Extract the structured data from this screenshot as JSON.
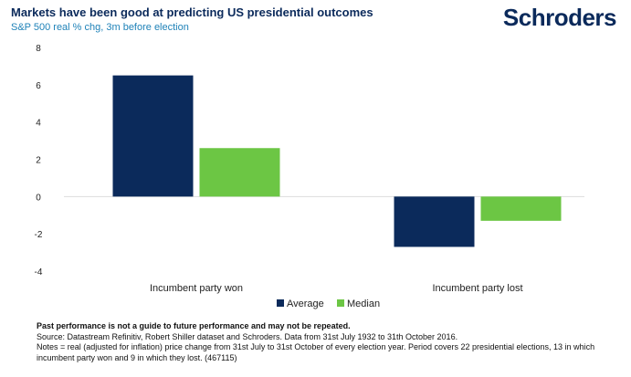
{
  "header": {
    "title": "Markets have been good at predicting US presidential outcomes",
    "subtitle": "S&P 500 real % chg, 3m before election",
    "logo": "Schroders"
  },
  "colors": {
    "average": "#0b2a5b",
    "median": "#6cc644",
    "title": "#0b2a5b",
    "subtitle": "#1f82b8"
  },
  "chart_data": {
    "type": "bar",
    "categories": [
      "Incumbent party won",
      "Incumbent party lost"
    ],
    "series": [
      {
        "name": "Average",
        "values": [
          6.5,
          -2.7
        ]
      },
      {
        "name": "Median",
        "values": [
          2.6,
          -1.3
        ]
      }
    ],
    "ylim": [
      -4,
      8
    ],
    "yticks": [
      8,
      6,
      4,
      2,
      0,
      -2,
      -4
    ],
    "legend": "bottom-center",
    "grid": false
  },
  "footer": {
    "disclaimer": "Past performance is not a guide to future performance and may not be repeated.",
    "source": "Source: Datastream Refinitiv, Robert Shiller dataset and Schroders. Data from 31st July 1932 to 31th October 2016.",
    "notes": "Notes = real (adjusted for inflation) price change from 31st July to 31st October of every election year. Period covers 22 presidential elections, 13 in which incumbent party won and 9 in which they lost. (467115)"
  }
}
